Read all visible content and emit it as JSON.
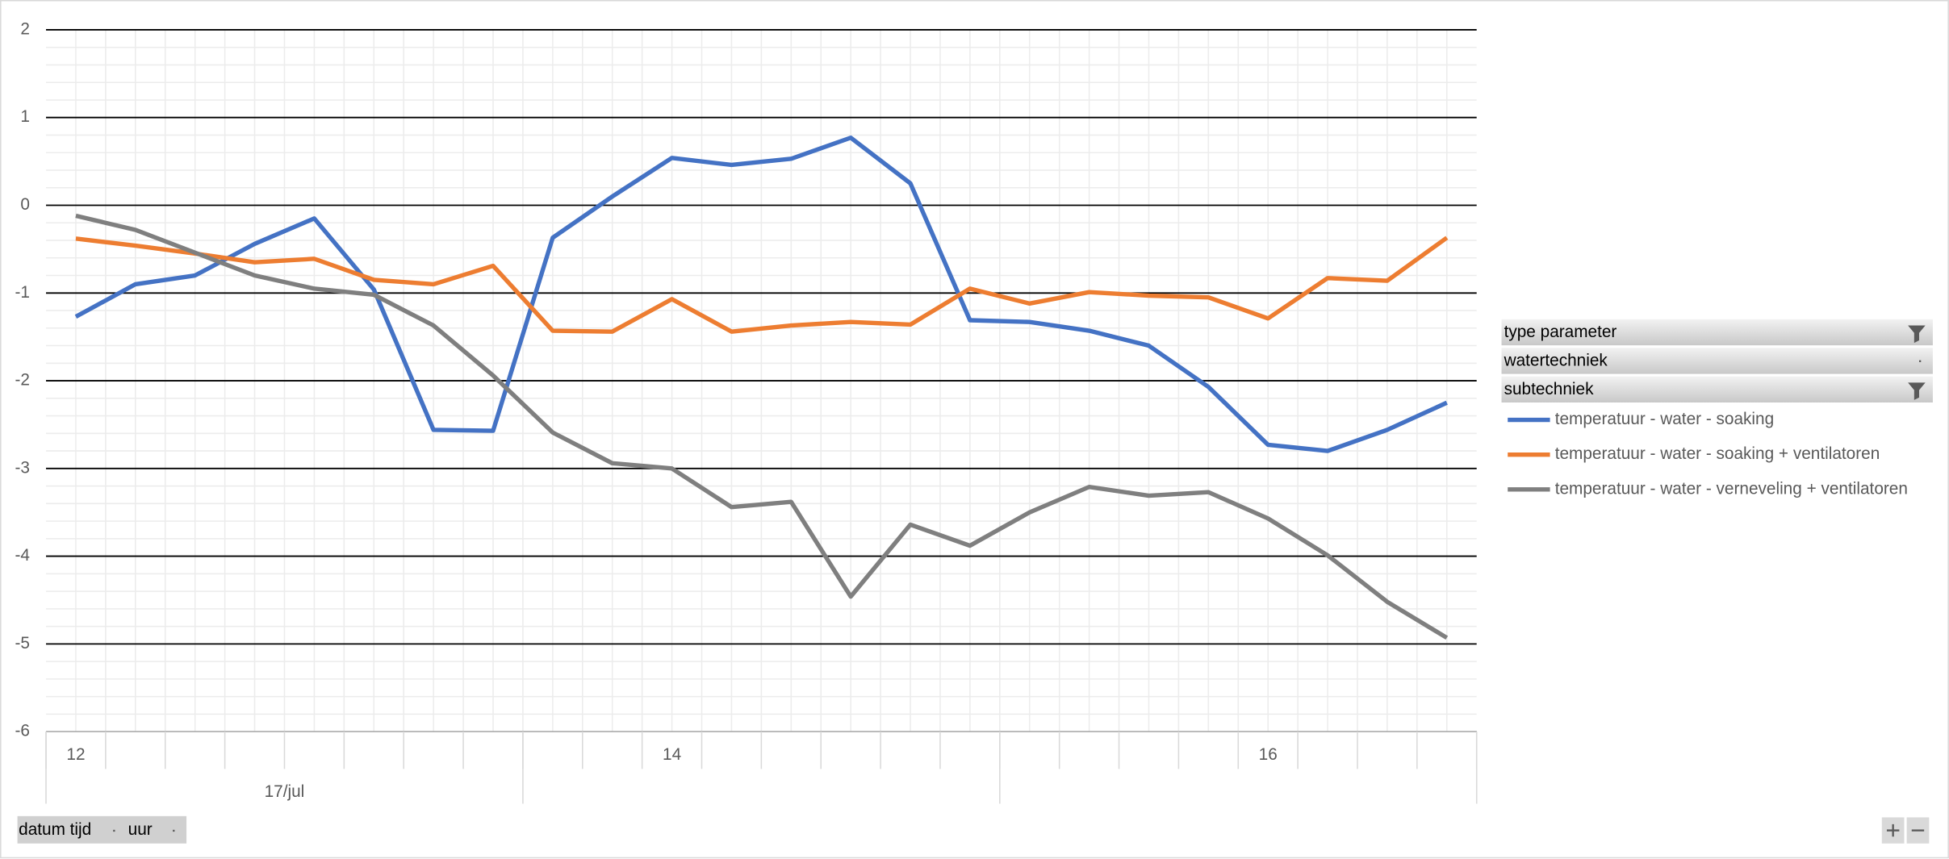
{
  "chart_data": {
    "type": "line",
    "categories": [
      "12",
      null,
      null,
      null,
      null,
      null,
      null,
      null,
      null,
      null,
      "14",
      null,
      null,
      null,
      null,
      null,
      null,
      null,
      null,
      null,
      "16",
      null,
      null,
      null
    ],
    "category_groups": [
      {
        "label": "17/jul",
        "span": 8
      },
      {
        "label": null,
        "span": 8
      },
      {
        "label": null,
        "span": 8
      }
    ],
    "series": [
      {
        "name": "temperatuur - water - soaking",
        "color": "#4472c4",
        "values": [
          -1.27,
          -0.9,
          -0.8,
          -0.44,
          -0.15,
          -0.96,
          -2.56,
          -2.57,
          -0.37,
          0.1,
          0.54,
          0.46,
          0.53,
          0.77,
          0.25,
          -1.31,
          -1.33,
          -1.43,
          -1.6,
          -2.07,
          -2.73,
          -2.8,
          -2.56,
          -2.25
        ]
      },
      {
        "name": "temperatuur - water - soaking + ventilatoren",
        "color": "#ed7d31",
        "values": [
          -0.38,
          -0.46,
          -0.55,
          -0.65,
          -0.61,
          -0.85,
          -0.9,
          -0.69,
          -1.43,
          -1.44,
          -1.07,
          -1.44,
          -1.37,
          -1.33,
          -1.36,
          -0.95,
          -1.12,
          -0.99,
          -1.03,
          -1.05,
          -1.29,
          -0.83,
          -0.86,
          -0.37
        ]
      },
      {
        "name": "temperatuur - water - verneveling + ventilatoren",
        "color": "#7f7f7f",
        "values": [
          -0.12,
          -0.28,
          -0.54,
          -0.8,
          -0.95,
          -1.02,
          -1.37,
          -1.94,
          -2.59,
          -2.94,
          -3.0,
          -3.44,
          -3.38,
          -4.46,
          -3.64,
          -3.88,
          -3.5,
          -3.21,
          -3.31,
          -3.27,
          -3.57,
          -3.99,
          -4.52,
          -4.93
        ]
      }
    ],
    "ylim": [
      -6,
      2
    ],
    "yticks": [
      2,
      1,
      0,
      -1,
      -2,
      -3,
      -4,
      -5,
      -6
    ],
    "grid": true,
    "minor_grid": true,
    "filters": [
      "type parameter",
      "watertechniek",
      "subtechniek"
    ],
    "axis_fields": [
      "datum tijd",
      "uur"
    ]
  }
}
